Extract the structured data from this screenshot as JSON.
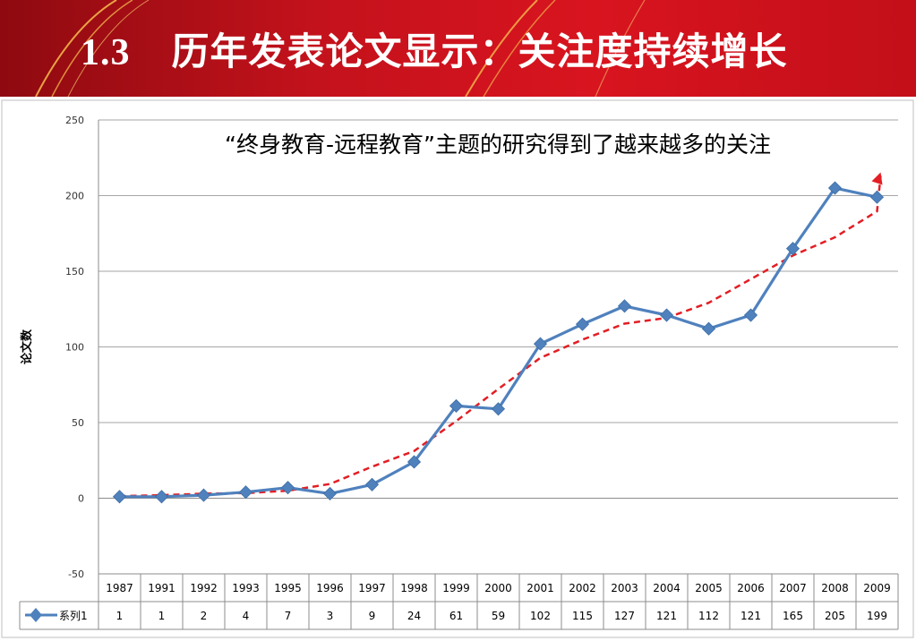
{
  "slide": {
    "number": "1.3",
    "title": "历年发表论文显示：关注度持续增长"
  },
  "chart_data": {
    "type": "line",
    "title": "“终身教育-远程教育”主题的研究得到了越来越多的关注",
    "xlabel": "",
    "ylabel": "论文数",
    "ylim": [
      -50,
      250
    ],
    "yticks": [
      "-50",
      "0",
      "50",
      "100",
      "150",
      "200",
      "250"
    ],
    "grid": true,
    "categories": [
      "1987",
      "1991",
      "1992",
      "1993",
      "1995",
      "1996",
      "1997",
      "1998",
      "1999",
      "2000",
      "2001",
      "2002",
      "2003",
      "2004",
      "2005",
      "2006",
      "2007",
      "2008",
      "2009"
    ],
    "series": [
      {
        "name": "系列1",
        "values": [
          1,
          1,
          2,
          4,
          7,
          3,
          9,
          24,
          61,
          59,
          102,
          115,
          127,
          121,
          112,
          121,
          165,
          205,
          199
        ],
        "color": "#4f81bd"
      }
    ],
    "trend_color": "#e31e24",
    "data_table": true
  }
}
